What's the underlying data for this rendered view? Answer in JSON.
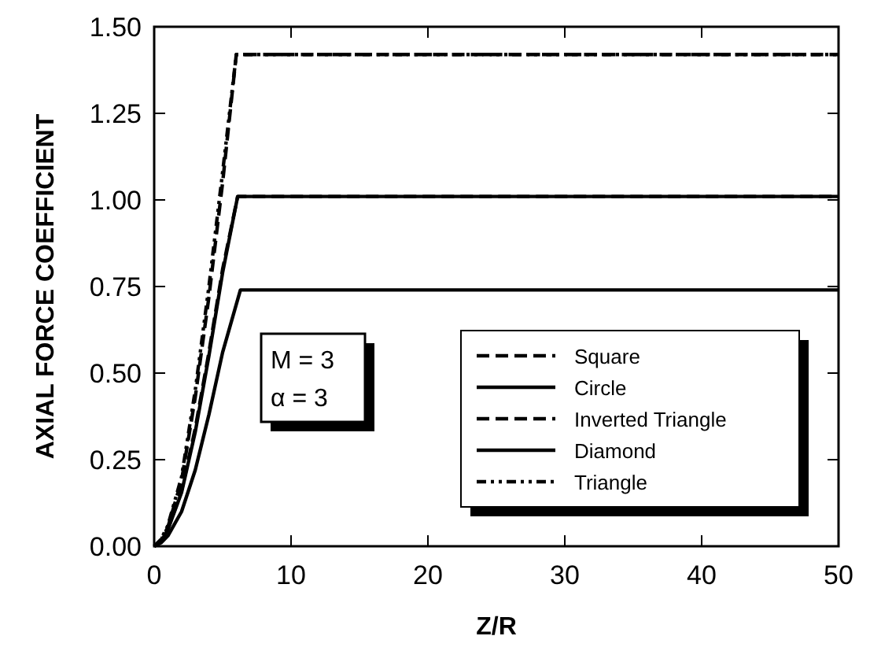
{
  "chart_data": {
    "type": "line",
    "xlabel": "Z/R",
    "ylabel": "AXIAL FORCE COEFFICIENT",
    "xlim": [
      0,
      50
    ],
    "xticks": [
      0,
      10,
      20,
      30,
      40,
      50
    ],
    "ylim": [
      0,
      1.5
    ],
    "yticks": [
      {
        "value": 0,
        "label": "0.00"
      },
      {
        "value": 0.25,
        "label": "0.25"
      },
      {
        "value": 0.5,
        "label": "0.50"
      },
      {
        "value": 0.75,
        "label": "0.75"
      },
      {
        "value": 1,
        "label": "1.00"
      },
      {
        "value": 1.25,
        "label": "1.25"
      },
      {
        "value": 1.5,
        "label": "1.50"
      }
    ],
    "grid": false,
    "legend": "bottom right",
    "marker": "none",
    "annotations": [
      "M = 3",
      "α = 3"
    ],
    "series": [
      {
        "name": "Square",
        "color": "#000000",
        "line_style": "dashed",
        "x": [
          0,
          0.5,
          1,
          2,
          3,
          4,
          5,
          6.1,
          50
        ],
        "values": [
          0,
          0.015,
          0.05,
          0.16,
          0.34,
          0.56,
          0.8,
          1.01,
          1.01
        ]
      },
      {
        "name": "Circle",
        "color": "#000000",
        "line_style": "solid",
        "x": [
          0,
          0.5,
          1,
          2,
          3,
          4,
          5,
          6.3,
          50
        ],
        "values": [
          0,
          0.01,
          0.03,
          0.1,
          0.22,
          0.38,
          0.56,
          0.74,
          0.74
        ]
      },
      {
        "name": "Inverted Triangle",
        "color": "#000000",
        "line_style": "dashed",
        "x": [
          0,
          0.5,
          1,
          2,
          3,
          4,
          5,
          6,
          50
        ],
        "values": [
          0,
          0.018,
          0.055,
          0.19,
          0.43,
          0.72,
          1.05,
          1.42,
          1.42
        ]
      },
      {
        "name": "Diamond",
        "color": "#000000",
        "line_style": "solid",
        "x": [
          0,
          0.5,
          1,
          2,
          3,
          4,
          5,
          6.1,
          50
        ],
        "values": [
          0,
          0.014,
          0.048,
          0.155,
          0.33,
          0.55,
          0.79,
          1.01,
          1.01
        ]
      },
      {
        "name": "Triangle",
        "color": "#000000",
        "line_style": "dotted",
        "x": [
          0,
          0.5,
          1,
          2,
          3,
          4,
          5,
          6,
          50
        ],
        "values": [
          0,
          0.02,
          0.06,
          0.2,
          0.45,
          0.75,
          1.08,
          1.42,
          1.42
        ]
      }
    ]
  }
}
